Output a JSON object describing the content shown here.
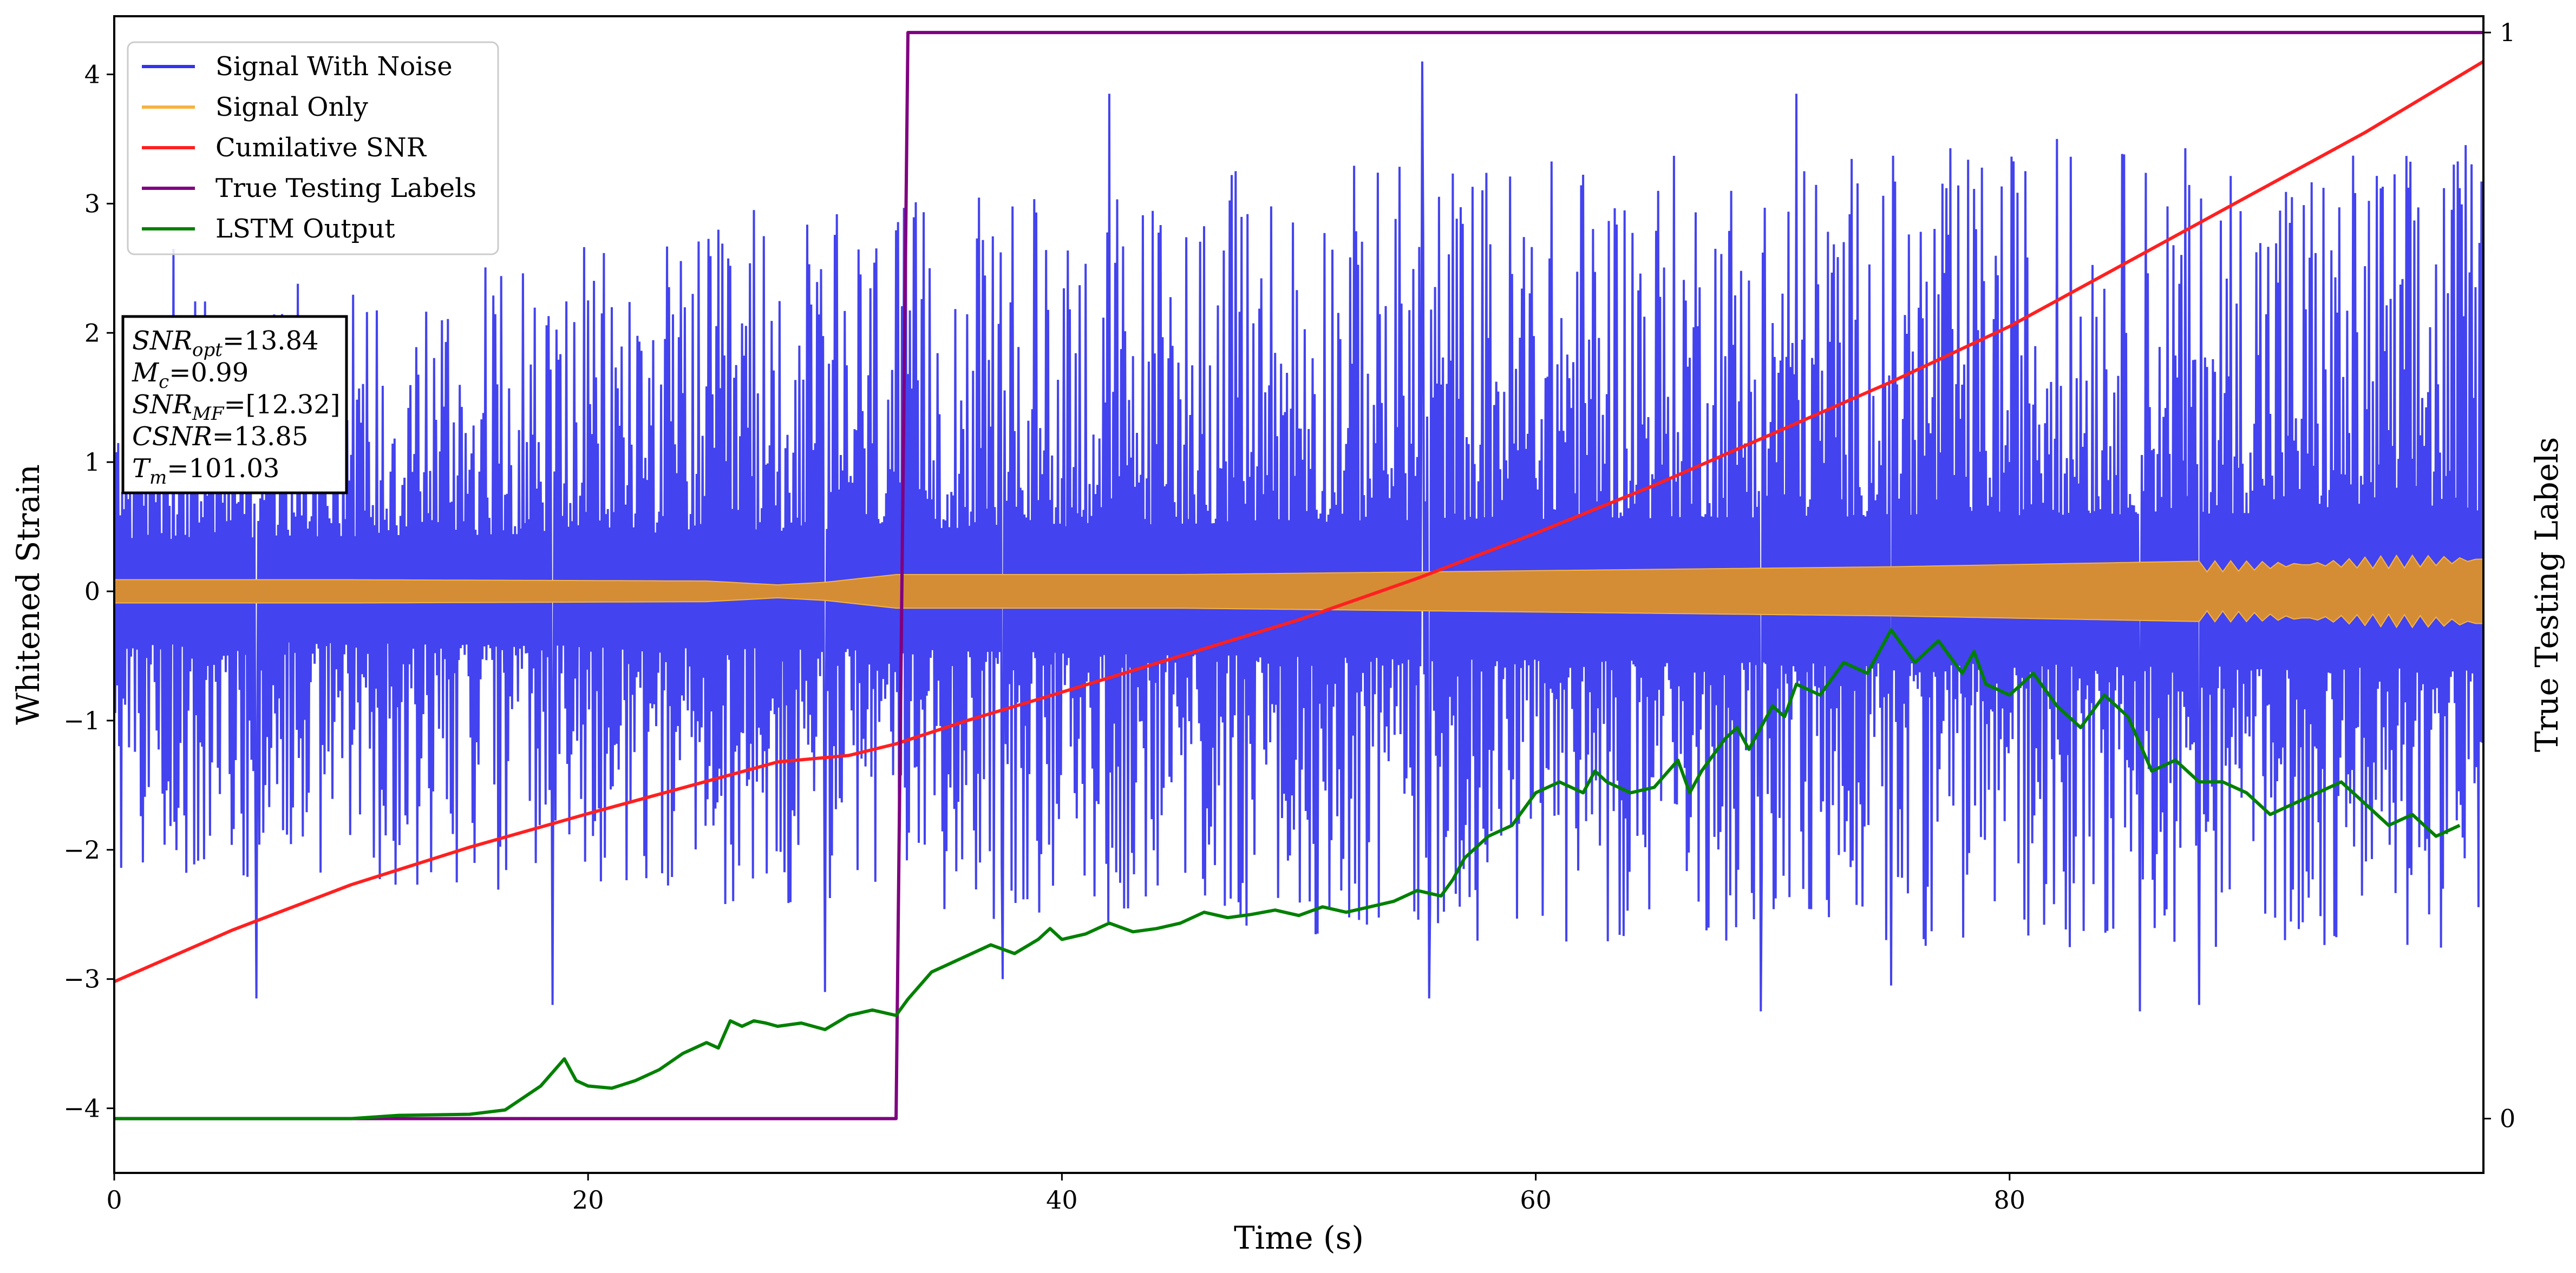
{
  "chart_data": {
    "type": "line",
    "xlabel": "Time (s)",
    "ylabel": "Whitened Strain",
    "y2label": "True Testing Labels",
    "xlim": [
      0,
      100
    ],
    "ylim": [
      -4.5,
      4.45
    ],
    "y2lim": [
      -0.05,
      1.015
    ],
    "x_ticks": [
      "0",
      "20",
      "40",
      "60",
      "80"
    ],
    "y_ticks": [
      "-4",
      "-3",
      "-2",
      "-1",
      "0",
      "1",
      "2",
      "3",
      "4"
    ],
    "y2_ticks": [
      "0",
      "1"
    ],
    "grid": false,
    "legend_position": "top-left",
    "legend": [
      {
        "name": "Signal With Noise",
        "color": "#3333ee"
      },
      {
        "name": "Signal Only",
        "color": "#f5b342"
      },
      {
        "name": "Cumilative SNR",
        "color": "#ff2020"
      },
      {
        "name": "True Testing Labels",
        "color": "#800080"
      },
      {
        "name": "LSTM Output",
        "color": "#008000"
      }
    ],
    "info_box": [
      {
        "main": "SNR",
        "sub": "opt",
        "rest": "=13.84"
      },
      {
        "main": "M",
        "sub": "c",
        "rest": "=0.99"
      },
      {
        "main": "SNR",
        "sub": "MF",
        "rest": "=[12.32]"
      },
      {
        "main": "CSNR",
        "sub": "",
        "rest": "=13.85"
      },
      {
        "main": "T",
        "sub": "m",
        "rest": "=101.03"
      }
    ],
    "series": [
      {
        "name": "Signal With Noise",
        "axis": "left",
        "color": "#3333ee",
        "style": "noise",
        "band_pos": [
          [
            0,
            0.4
          ],
          [
            33,
            0.48
          ],
          [
            55,
            0.55
          ],
          [
            100,
            0.62
          ]
        ],
        "band_neg": [
          [
            0,
            -0.38
          ],
          [
            33,
            -0.45
          ],
          [
            55,
            -0.52
          ],
          [
            100,
            -0.6
          ]
        ],
        "spike_max": [
          [
            0,
            2.2
          ],
          [
            33,
            3.0
          ],
          [
            55,
            3.4
          ],
          [
            100,
            3.5
          ]
        ],
        "spike_min": [
          [
            0,
            -2.2
          ],
          [
            33,
            -2.5
          ],
          [
            55,
            -2.7
          ],
          [
            100,
            -2.8
          ]
        ],
        "peaks": [
          [
            2.5,
            2.65
          ],
          [
            27,
            2.95
          ],
          [
            42,
            3.85
          ],
          [
            55.2,
            4.1
          ],
          [
            71,
            3.85
          ],
          [
            82,
            3.5
          ],
          [
            99,
            3.12
          ]
        ],
        "troughs": [
          [
            6,
            -3.15
          ],
          [
            18.5,
            -3.2
          ],
          [
            30,
            -3.1
          ],
          [
            37.5,
            -3.0
          ],
          [
            55.5,
            -3.15
          ],
          [
            69.5,
            -3.25
          ],
          [
            75,
            -3.05
          ],
          [
            85.5,
            -3.25
          ],
          [
            88,
            -3.2
          ]
        ]
      },
      {
        "name": "Signal Only",
        "axis": "left",
        "color": "#f5b342",
        "style": "band",
        "fill": "#d48d35",
        "envelope": [
          [
            0,
            0.09
          ],
          [
            10,
            0.09
          ],
          [
            25,
            0.08
          ],
          [
            28,
            0.05
          ],
          [
            30,
            0.07
          ],
          [
            33,
            0.13
          ],
          [
            45,
            0.13
          ],
          [
            60,
            0.16
          ],
          [
            75,
            0.19
          ],
          [
            90,
            0.24
          ],
          [
            100,
            0.3
          ]
        ]
      },
      {
        "name": "Cumilative SNR",
        "axis": "left",
        "color": "#ff2020",
        "x": [
          0,
          5,
          10,
          15,
          20,
          25,
          28,
          31,
          33,
          36,
          40,
          45,
          50,
          55,
          60,
          65,
          70,
          75,
          80,
          85,
          90,
          95,
          100
        ],
        "y": [
          -3.02,
          -2.62,
          -2.27,
          -1.98,
          -1.72,
          -1.47,
          -1.32,
          -1.27,
          -1.18,
          -1.0,
          -0.78,
          -0.5,
          -0.22,
          0.1,
          0.45,
          0.82,
          1.22,
          1.62,
          2.05,
          2.55,
          3.05,
          3.55,
          4.1
        ]
      },
      {
        "name": "True Testing Labels",
        "axis": "right",
        "color": "#800080",
        "x": [
          0,
          33.0,
          33.5,
          100
        ],
        "y": [
          0,
          0,
          1,
          1
        ]
      },
      {
        "name": "LSTM Output",
        "axis": "right",
        "color": "#008000",
        "x": [
          0,
          10,
          12,
          15,
          16.5,
          18,
          19,
          19.5,
          20,
          21,
          22,
          23,
          24,
          25,
          25.5,
          26,
          26.5,
          27,
          27.5,
          28,
          29,
          30,
          31,
          32,
          33,
          33.5,
          34.5,
          35,
          35.5,
          36,
          37,
          38,
          39,
          39.5,
          40,
          41,
          42,
          43,
          44,
          45,
          46,
          47,
          48,
          49,
          50,
          51,
          52,
          53,
          54,
          55,
          56,
          56.5,
          57,
          57.5,
          58,
          59,
          60,
          61,
          62,
          62.5,
          63,
          64,
          65,
          66,
          66.5,
          67,
          68,
          68.5,
          69,
          70,
          70.5,
          71,
          72,
          73,
          74,
          74.5,
          75,
          76,
          77,
          78,
          78.5,
          79,
          80,
          81,
          82,
          83,
          84,
          85,
          86,
          87,
          88,
          89,
          90,
          91,
          92,
          93,
          94,
          95,
          96,
          97,
          98,
          99
        ],
        "y": [
          0,
          0,
          0.003,
          0.004,
          0.008,
          0.03,
          0.055,
          0.035,
          0.03,
          0.028,
          0.035,
          0.045,
          0.06,
          0.07,
          0.065,
          0.09,
          0.085,
          0.09,
          0.088,
          0.085,
          0.088,
          0.082,
          0.095,
          0.1,
          0.095,
          0.11,
          0.135,
          0.14,
          0.145,
          0.15,
          0.16,
          0.152,
          0.165,
          0.175,
          0.165,
          0.17,
          0.18,
          0.172,
          0.175,
          0.18,
          0.19,
          0.185,
          0.188,
          0.192,
          0.187,
          0.195,
          0.19,
          0.195,
          0.2,
          0.21,
          0.205,
          0.22,
          0.24,
          0.25,
          0.26,
          0.27,
          0.3,
          0.31,
          0.3,
          0.32,
          0.31,
          0.3,
          0.305,
          0.33,
          0.3,
          0.32,
          0.35,
          0.36,
          0.34,
          0.38,
          0.37,
          0.4,
          0.39,
          0.42,
          0.41,
          0.43,
          0.45,
          0.42,
          0.44,
          0.41,
          0.43,
          0.4,
          0.39,
          0.41,
          0.38,
          0.36,
          0.39,
          0.37,
          0.32,
          0.33,
          0.31,
          0.31,
          0.3,
          0.28,
          0.29,
          0.3,
          0.31,
          0.29,
          0.27,
          0.28,
          0.26,
          0.27
        ]
      }
    ]
  }
}
